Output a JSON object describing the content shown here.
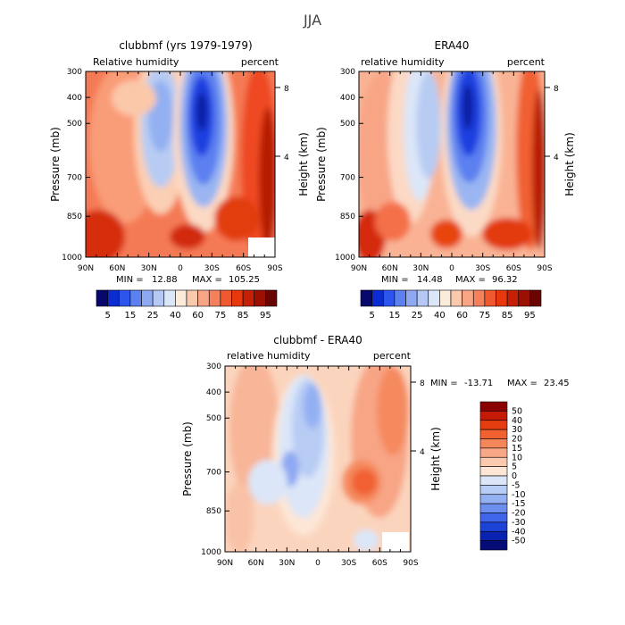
{
  "figure_title": "JJA",
  "x_ticks": [
    "90N",
    "60N",
    "30N",
    "0",
    "30S",
    "60S",
    "90S"
  ],
  "pressure_ticks": [
    "300",
    "400",
    "500",
    "700",
    "850",
    "1000"
  ],
  "height_ticks": [
    "8",
    "4"
  ],
  "ylabel": "Pressure (mb)",
  "ylabel_right": "Height (km)",
  "chart_data": [
    {
      "type": "heatmap",
      "title": "clubbmf (yrs 1979-1979)",
      "left_label": "Relative humidity",
      "right_label": "percent",
      "min_label": "MIN =",
      "min_value": "12.88",
      "max_label": "MAX =",
      "max_value": "105.25",
      "xlim": [
        "90N",
        "90S"
      ],
      "ylim": [
        300,
        1000
      ],
      "colorbar_labels": [
        "5",
        "15",
        "25",
        "40",
        "60",
        "75",
        "85",
        "95"
      ],
      "colors": [
        "#08076e",
        "#0b2cd0",
        "#2d55ee",
        "#5c80f0",
        "#8ea9f2",
        "#b5c8f3",
        "#dbe6f8",
        "#fbebdb",
        "#f9c9ae",
        "#f7a585",
        "#f5805c",
        "#f0582f",
        "#e8380d",
        "#c51f06",
        "#9b1003",
        "#6a0401"
      ]
    },
    {
      "type": "heatmap",
      "title": "ERA40",
      "left_label": "relative humidity",
      "right_label": "percent",
      "min_label": "MIN =",
      "min_value": "14.48",
      "max_label": "MAX =",
      "max_value": "96.32",
      "xlim": [
        "90N",
        "90S"
      ],
      "ylim": [
        300,
        1000
      ],
      "colorbar_labels": [
        "5",
        "15",
        "25",
        "40",
        "60",
        "75",
        "85",
        "95"
      ],
      "colors": [
        "#08076e",
        "#0b2cd0",
        "#2d55ee",
        "#5c80f0",
        "#8ea9f2",
        "#b5c8f3",
        "#dbe6f8",
        "#fbebdb",
        "#f9c9ae",
        "#f7a585",
        "#f5805c",
        "#f0582f",
        "#e8380d",
        "#c51f06",
        "#9b1003",
        "#6a0401"
      ]
    },
    {
      "type": "heatmap",
      "title": "clubbmf - ERA40",
      "left_label": "relative humidity",
      "right_label": "percent",
      "min_label": "MIN =",
      "min_value": "-13.71",
      "max_label": "MAX =",
      "max_value": "23.45",
      "xlim": [
        "90N",
        "90S"
      ],
      "ylim": [
        300,
        1000
      ],
      "colorbar_labels": [
        "50",
        "40",
        "30",
        "20",
        "15",
        "10",
        "5",
        "0",
        "-5",
        "-10",
        "-15",
        "-20",
        "-30",
        "-40",
        "-50"
      ],
      "colors": [
        "#8b0000",
        "#c41a06",
        "#e33d10",
        "#f06030",
        "#f5855a",
        "#f8a886",
        "#fbc9ae",
        "#fde6d6",
        "#dbe6f8",
        "#b8cdf6",
        "#93b0f3",
        "#6d8ff0",
        "#3f66ea",
        "#1c43d6",
        "#0a22b0",
        "#050c78"
      ]
    }
  ]
}
